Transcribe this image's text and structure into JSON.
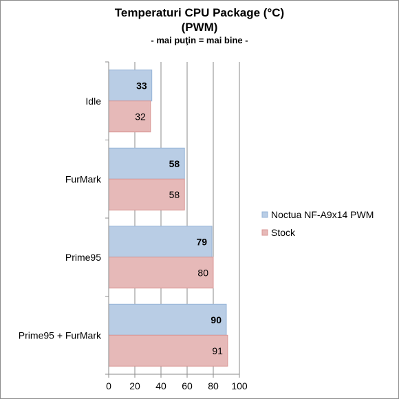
{
  "chart_data": {
    "type": "bar",
    "orientation": "horizontal",
    "title_lines": [
      "Temperaturi CPU Package (°C)",
      "(PWM)"
    ],
    "subtitle": "- mai puţin = mai bine -",
    "categories": [
      "Idle",
      "FurMark",
      "Prime95",
      "Prime95 + FurMark"
    ],
    "series": [
      {
        "name": "Noctua NF-A9x14 PWM",
        "values": [
          33,
          58,
          79,
          90
        ],
        "color": "#b9cde5",
        "border": "#95b3d7",
        "label_bold": true
      },
      {
        "name": "Stock",
        "values": [
          32,
          58,
          80,
          91
        ],
        "color": "#e6b9b8",
        "border": "#d99694",
        "label_bold": false
      }
    ],
    "xlim": [
      0,
      100
    ],
    "xticks": [
      "0",
      "20",
      "40",
      "60",
      "80",
      "100"
    ],
    "grid": true,
    "legend_position": "right"
  }
}
